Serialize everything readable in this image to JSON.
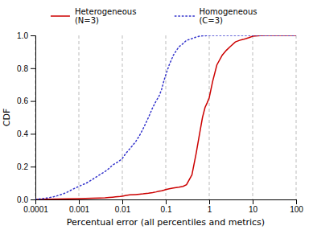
{
  "chart_data": {
    "type": "line",
    "xlabel": "Percentual error (all percentiles and metrics)",
    "ylabel": "CDF",
    "log": "x",
    "grid": "x",
    "legend": "top",
    "xlim": [
      0.0001,
      100
    ],
    "xticks": [
      0.0001,
      0.001,
      0.01,
      0.1,
      1,
      10,
      100
    ],
    "ylim": [
      0,
      1
    ],
    "yticks": [
      {
        "value": 0,
        "label": "0.0"
      },
      0.2,
      0.4,
      0.6,
      0.8,
      {
        "value": 1,
        "label": "1.0"
      }
    ],
    "series": [
      {
        "name": "Heterogeneous\n(N=3)",
        "color": "#cc0000",
        "line_style": "solid",
        "x": [
          0.0001,
          0.001,
          0.002,
          0.003,
          0.004,
          0.005,
          0.006,
          0.007,
          0.008,
          0.009,
          0.01,
          0.011,
          0.012,
          0.013,
          0.015,
          0.02,
          0.025,
          0.03,
          0.04,
          0.05,
          0.06,
          0.07,
          0.08,
          0.09,
          0.1,
          0.12,
          0.15,
          0.2,
          0.25,
          0.3,
          0.4,
          0.5,
          0.6,
          0.7,
          0.8,
          0.9,
          1.0,
          1.2,
          1.5,
          2.0,
          2.5,
          3.0,
          4.0,
          5.0,
          6.0,
          7.0,
          8.0,
          9.0,
          10.0,
          15.0,
          20.0,
          100.0
        ],
        "values": [
          0.0,
          0.005,
          0.007,
          0.009,
          0.01,
          0.012,
          0.014,
          0.016,
          0.017,
          0.018,
          0.02,
          0.022,
          0.024,
          0.026,
          0.028,
          0.03,
          0.032,
          0.034,
          0.038,
          0.042,
          0.046,
          0.05,
          0.053,
          0.056,
          0.06,
          0.065,
          0.07,
          0.075,
          0.08,
          0.09,
          0.15,
          0.28,
          0.4,
          0.5,
          0.56,
          0.59,
          0.62,
          0.72,
          0.82,
          0.88,
          0.91,
          0.93,
          0.96,
          0.97,
          0.975,
          0.98,
          0.985,
          0.99,
          0.995,
          0.999,
          1.0,
          1.0
        ]
      },
      {
        "name": "Homogeneous\n(C=3)",
        "color": "#3333cc",
        "line_style": "dotted",
        "x": [
          0.0001,
          0.0002,
          0.0003,
          0.0005,
          0.0007,
          0.001,
          0.0015,
          0.002,
          0.003,
          0.004,
          0.005,
          0.006,
          0.007,
          0.008,
          0.009,
          0.01,
          0.012,
          0.015,
          0.02,
          0.025,
          0.03,
          0.04,
          0.05,
          0.06,
          0.07,
          0.08,
          0.09,
          0.1,
          0.12,
          0.15,
          0.2,
          0.25,
          0.3,
          0.4,
          0.5,
          0.6,
          0.7,
          0.8,
          0.9,
          1.0,
          1.5,
          100.0
        ],
        "values": [
          0.0,
          0.01,
          0.02,
          0.04,
          0.06,
          0.08,
          0.1,
          0.12,
          0.15,
          0.17,
          0.19,
          0.21,
          0.22,
          0.23,
          0.24,
          0.25,
          0.28,
          0.31,
          0.35,
          0.39,
          0.43,
          0.5,
          0.56,
          0.6,
          0.63,
          0.67,
          0.72,
          0.76,
          0.82,
          0.88,
          0.93,
          0.95,
          0.97,
          0.98,
          0.99,
          0.995,
          0.997,
          0.998,
          0.999,
          1.0,
          1.0,
          1.0
        ]
      }
    ]
  }
}
